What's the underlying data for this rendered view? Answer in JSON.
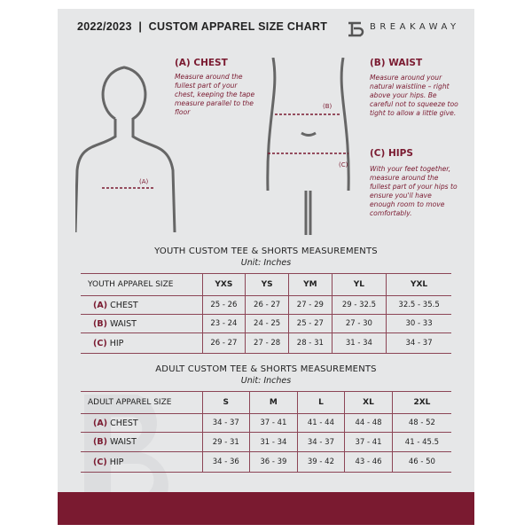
{
  "header": {
    "title": "2022/2023  |  CUSTOM APPAREL SIZE CHART",
    "brand": "BREAKAWAY"
  },
  "measures": {
    "chest": {
      "title": "(A) CHEST",
      "desc": "Measure around the fullest part of your chest, keeping the tape measure parallel to the floor",
      "marker": "(A)"
    },
    "waist": {
      "title": "(B) WAIST",
      "desc": "Measure around your natural waistline – right above your hips. Be careful not to squeeze too tight to allow a little give.",
      "marker": "(B)"
    },
    "hips": {
      "title": "(C) HIPS",
      "desc": "With your feet together, measure around the fullest part of your hips to ensure you'll have enough room to move comfortably.",
      "marker": "(C)"
    }
  },
  "youth": {
    "title": "YOUTH CUSTOM TEE & SHORTS MEASUREMENTS",
    "unit": "Unit: Inches",
    "header": [
      "YOUTH APPAREL SIZE",
      "YXS",
      "YS",
      "YM",
      "YL",
      "YXL"
    ],
    "rows": [
      {
        "letter": "(A)",
        "label": "CHEST",
        "values": [
          "25 - 26",
          "26 - 27",
          "27 - 29",
          "29 - 32.5",
          "32.5 - 35.5"
        ]
      },
      {
        "letter": "(B)",
        "label": "WAIST",
        "values": [
          "23 - 24",
          "24 - 25",
          "25 - 27",
          "27 - 30",
          "30 - 33"
        ]
      },
      {
        "letter": "(C)",
        "label": "HIP",
        "values": [
          "26 - 27",
          "27 - 28",
          "28 - 31",
          "31 - 34",
          "34 - 37"
        ]
      }
    ]
  },
  "adult": {
    "title": "ADULT CUSTOM TEE & SHORTS MEASUREMENTS",
    "unit": "Unit: Inches",
    "header": [
      "ADULT APPAREL SIZE",
      "S",
      "M",
      "L",
      "XL",
      "2XL"
    ],
    "rows": [
      {
        "letter": "(A)",
        "label": "CHEST",
        "values": [
          "34 - 37",
          "37 - 41",
          "41 - 44",
          "44 - 48",
          "48 - 52"
        ]
      },
      {
        "letter": "(B)",
        "label": "WAIST",
        "values": [
          "29 - 31",
          "31 - 34",
          "34 - 37",
          "37 - 41",
          "41 - 45.5"
        ]
      },
      {
        "letter": "(C)",
        "label": "HIP",
        "values": [
          "34 - 36",
          "36 - 39",
          "39 - 42",
          "43 - 46",
          "46 - 50"
        ]
      }
    ]
  },
  "colors": {
    "accent": "#7a1a30",
    "page": "#e6e7e8"
  }
}
